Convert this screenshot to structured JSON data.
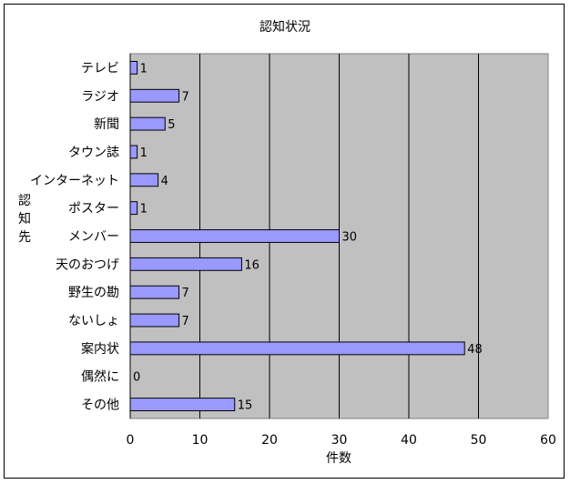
{
  "chart_data": {
    "type": "bar",
    "orientation": "horizontal",
    "title": "認知状況",
    "xlabel": "件数",
    "ylabel": "認知先",
    "categories": [
      "テレビ",
      "ラジオ",
      "新聞",
      "タウン誌",
      "インターネット",
      "ポスター",
      "メンバー",
      "天のおつげ",
      "野生の勘",
      "ないしょ",
      "案内状",
      "偶然に",
      "その他"
    ],
    "values": [
      1,
      7,
      5,
      1,
      4,
      1,
      30,
      16,
      7,
      7,
      48,
      0,
      15
    ],
    "xlim": [
      0,
      60
    ],
    "xticks": [
      0,
      10,
      20,
      30,
      40,
      50,
      60
    ],
    "grid": true,
    "colors": {
      "bar_fill": "#9999ff",
      "bar_stroke": "#000000",
      "plot_background": "#c0c0c0",
      "gridline": "#000000"
    }
  }
}
